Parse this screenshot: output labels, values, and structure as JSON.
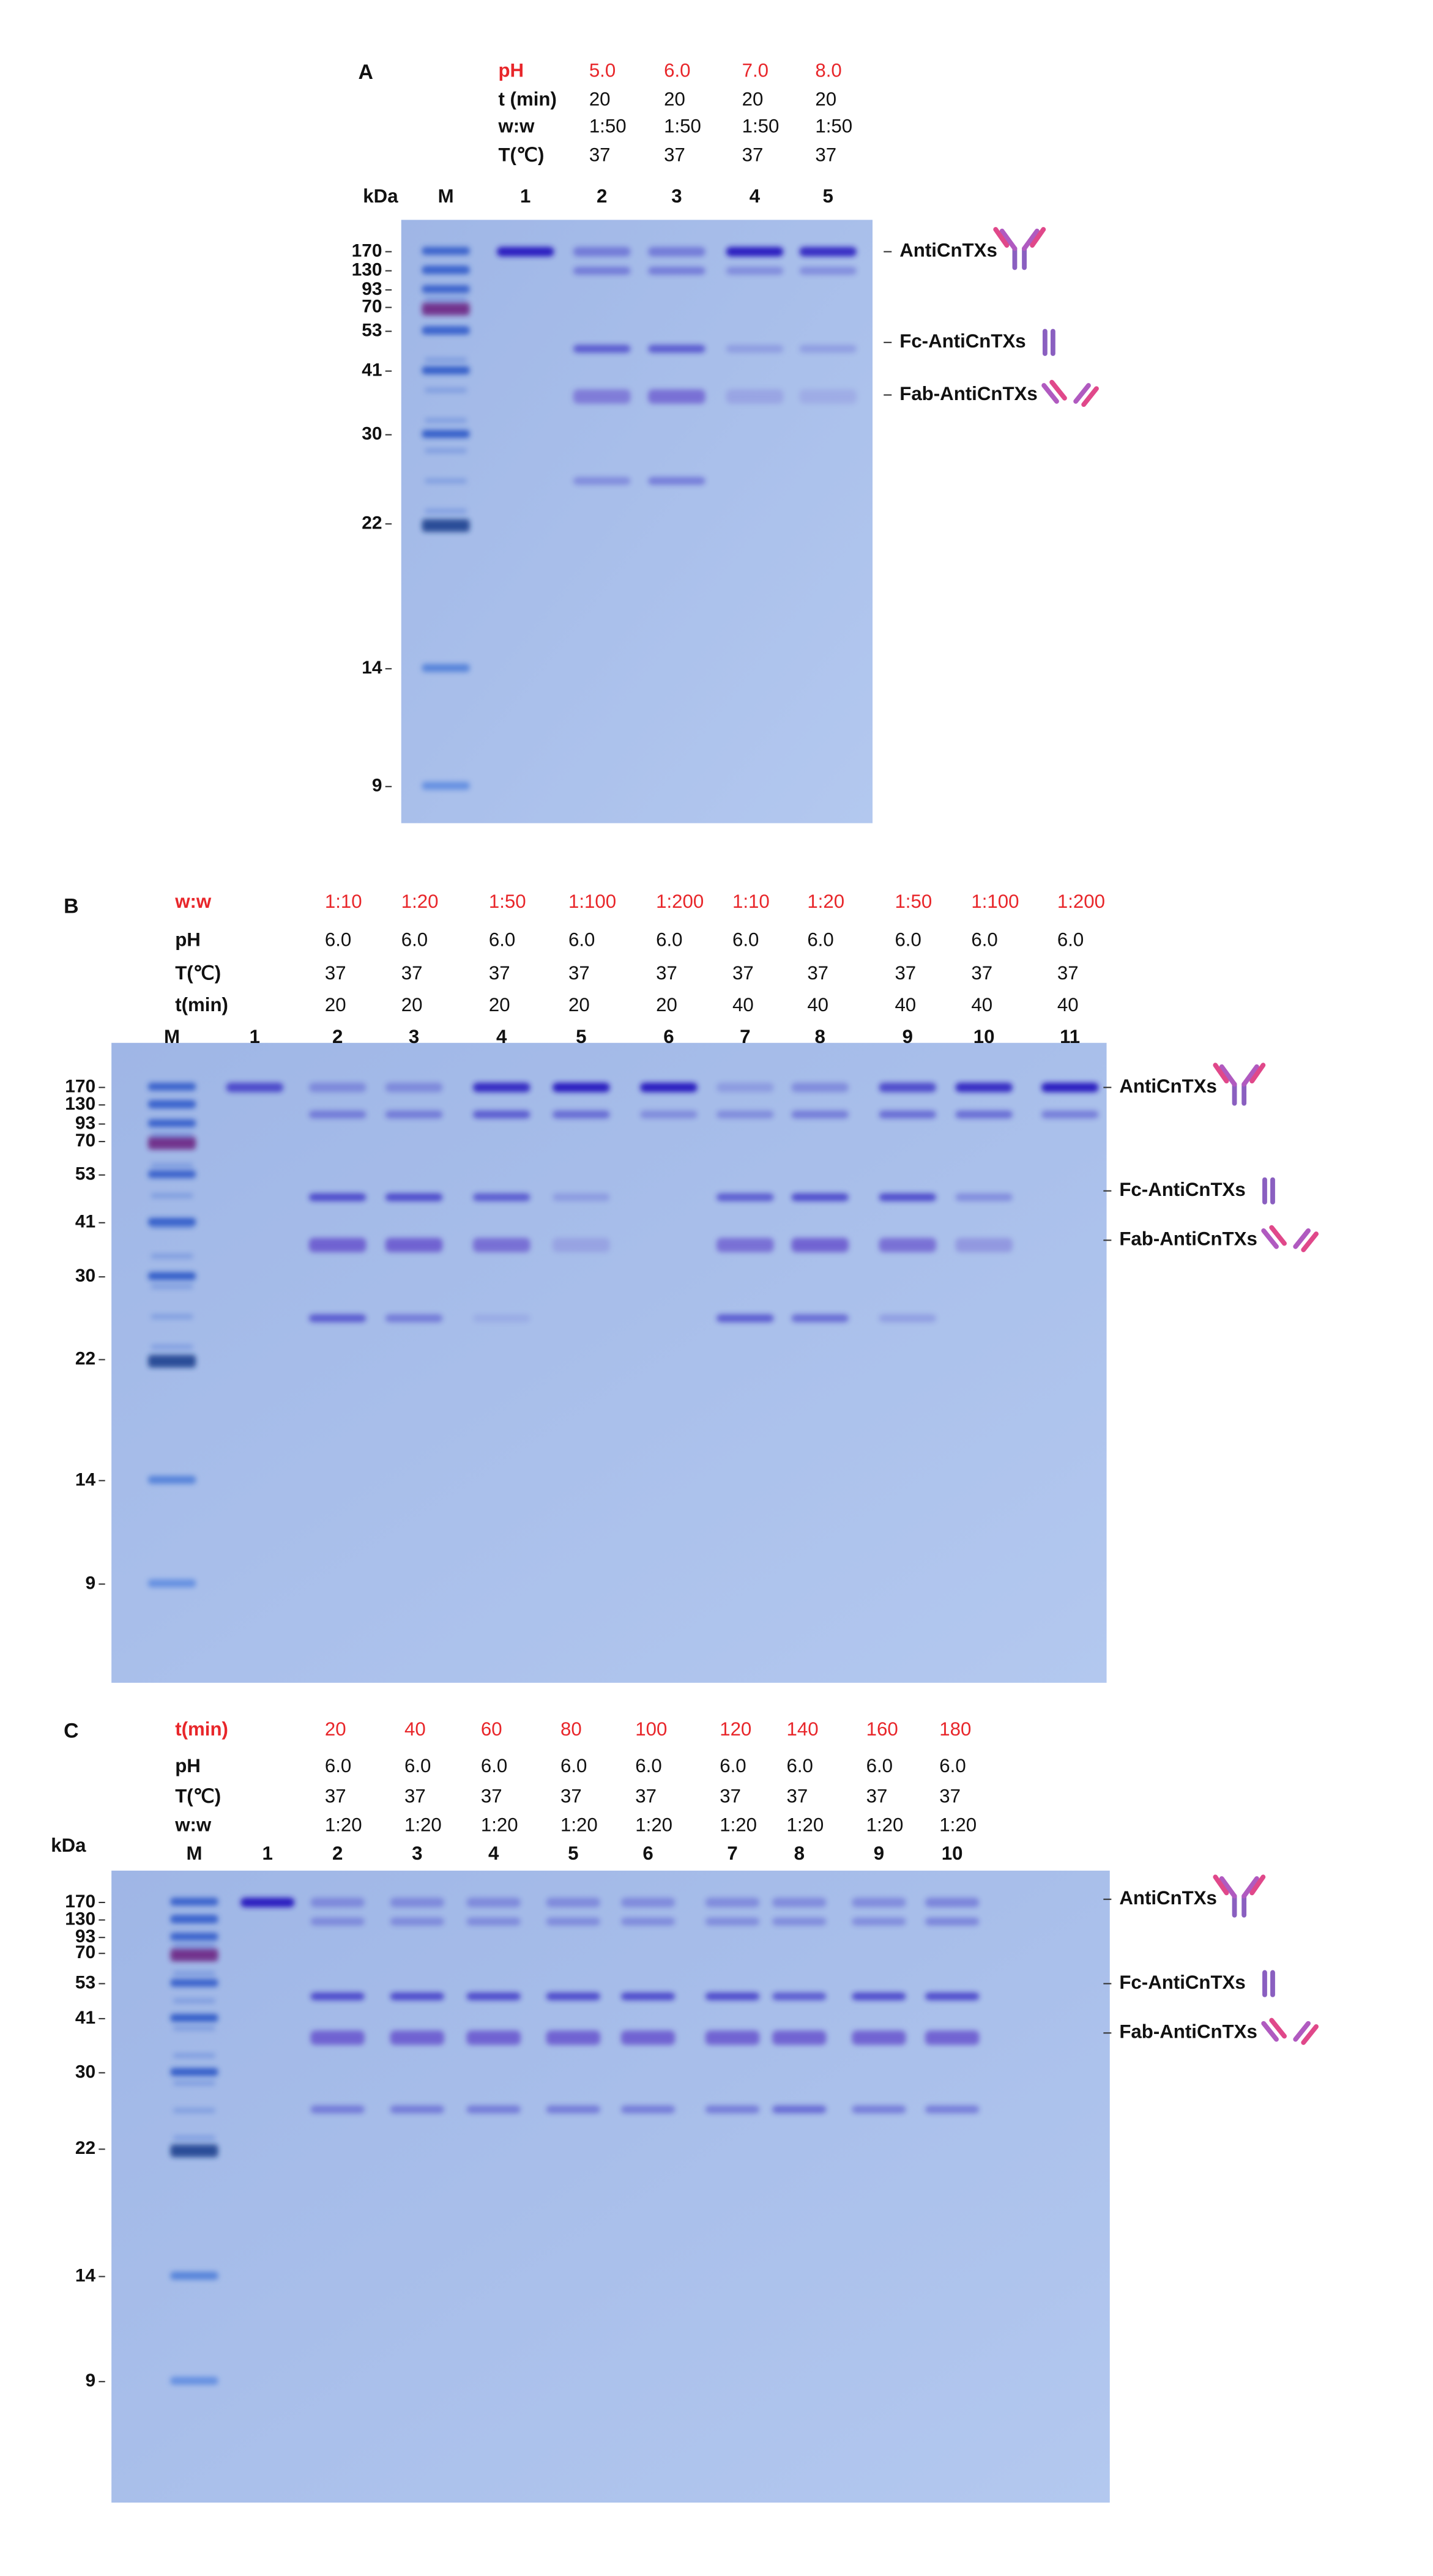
{
  "panels": [
    {
      "label": "A",
      "kda": "kDa",
      "header_rows": [
        {
          "label": "pH",
          "values": [
            "5.0",
            "6.0",
            "7.0",
            "8.0"
          ]
        },
        {
          "label": "t (min)",
          "values": [
            "20",
            "20",
            "20",
            "20"
          ]
        },
        {
          "label": "w:w",
          "values": [
            "1:50",
            "1:50",
            "1:50",
            "1:50"
          ]
        },
        {
          "label": "T(℃)",
          "values": [
            "37",
            "37",
            "37",
            "37"
          ]
        }
      ],
      "lanes": [
        "M",
        "1",
        "2",
        "3",
        "4",
        "5"
      ],
      "markers": [
        "170",
        "130",
        "93",
        "70",
        "53",
        "41",
        "30",
        "22",
        "14",
        "9"
      ],
      "band_labels": [
        "AntiCnTXs",
        "Fc-AntiCnTXs",
        "Fab-AntiCnTXs"
      ]
    },
    {
      "label": "B",
      "header_rows": [
        {
          "label": "w:w",
          "values": [
            "1:10",
            "1:20",
            "1:50",
            "1:100",
            "1:200",
            "1:10",
            "1:20",
            "1:50",
            "1:100",
            "1:200"
          ]
        },
        {
          "label": "pH",
          "values": [
            "6.0",
            "6.0",
            "6.0",
            "6.0",
            "6.0",
            "6.0",
            "6.0",
            "6.0",
            "6.0",
            "6.0"
          ]
        },
        {
          "label": "T(℃)",
          "values": [
            "37",
            "37",
            "37",
            "37",
            "37",
            "37",
            "37",
            "37",
            "37",
            "37"
          ]
        },
        {
          "label": "t(min)",
          "values": [
            "20",
            "20",
            "20",
            "20",
            "20",
            "40",
            "40",
            "40",
            "40",
            "40"
          ]
        }
      ],
      "lanes": [
        "M",
        "1",
        "2",
        "3",
        "4",
        "5",
        "6",
        "7",
        "8",
        "9",
        "10",
        "11"
      ],
      "markers": [
        "170",
        "130",
        "93",
        "70",
        "53",
        "41",
        "30",
        "22",
        "14",
        "9"
      ],
      "band_labels": [
        "AntiCnTXs",
        "Fc-AntiCnTXs",
        "Fab-AntiCnTXs"
      ]
    },
    {
      "label": "C",
      "kda": "kDa",
      "header_rows": [
        {
          "label": "t(min)",
          "values": [
            "20",
            "40",
            "60",
            "80",
            "100",
            "120",
            "140",
            "160",
            "180"
          ]
        },
        {
          "label": "pH",
          "values": [
            "6.0",
            "6.0",
            "6.0",
            "6.0",
            "6.0",
            "6.0",
            "6.0",
            "6.0",
            "6.0"
          ]
        },
        {
          "label": "T(℃)",
          "values": [
            "37",
            "37",
            "37",
            "37",
            "37",
            "37",
            "37",
            "37",
            "37"
          ]
        },
        {
          "label": "w:w",
          "values": [
            "1:20",
            "1:20",
            "1:20",
            "1:20",
            "1:20",
            "1:20",
            "1:20",
            "1:20",
            "1:20"
          ]
        }
      ],
      "lanes": [
        "M",
        "1",
        "2",
        "3",
        "4",
        "5",
        "6",
        "7",
        "8",
        "9",
        "10"
      ],
      "markers": [
        "170",
        "130",
        "93",
        "70",
        "53",
        "41",
        "30",
        "22",
        "14",
        "9"
      ],
      "band_labels": [
        "AntiCnTXs",
        "Fc-AntiCnTXs",
        "Fab-AntiCnTXs"
      ]
    }
  ]
}
